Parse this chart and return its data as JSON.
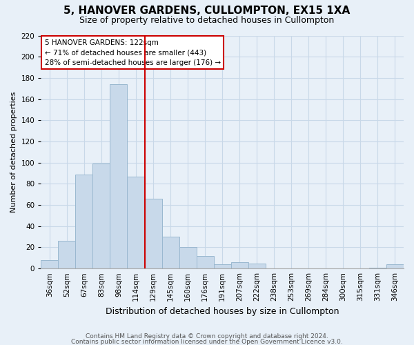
{
  "title": "5, HANOVER GARDENS, CULLOMPTON, EX15 1XA",
  "subtitle": "Size of property relative to detached houses in Cullompton",
  "xlabel": "Distribution of detached houses by size in Cullompton",
  "ylabel": "Number of detached properties",
  "bar_labels": [
    "36sqm",
    "52sqm",
    "67sqm",
    "83sqm",
    "98sqm",
    "114sqm",
    "129sqm",
    "145sqm",
    "160sqm",
    "176sqm",
    "191sqm",
    "207sqm",
    "222sqm",
    "238sqm",
    "253sqm",
    "269sqm",
    "284sqm",
    "300sqm",
    "315sqm",
    "331sqm",
    "346sqm"
  ],
  "bar_values": [
    8,
    26,
    89,
    99,
    174,
    87,
    66,
    30,
    20,
    12,
    4,
    6,
    5,
    0,
    0,
    0,
    0,
    0,
    0,
    1,
    4
  ],
  "bar_color": "#c8d9ea",
  "bar_edge_color": "#9ab8d0",
  "vline_index": 5.5,
  "vline_color": "#cc0000",
  "ylim": [
    0,
    220
  ],
  "yticks": [
    0,
    20,
    40,
    60,
    80,
    100,
    120,
    140,
    160,
    180,
    200,
    220
  ],
  "annotation_title": "5 HANOVER GARDENS: 122sqm",
  "annotation_line1": "← 71% of detached houses are smaller (443)",
  "annotation_line2": "28% of semi-detached houses are larger (176) →",
  "annotation_box_color": "#ffffff",
  "annotation_border_color": "#cc0000",
  "footer_line1": "Contains HM Land Registry data © Crown copyright and database right 2024.",
  "footer_line2": "Contains public sector information licensed under the Open Government Licence v3.0.",
  "grid_color": "#c8d8e8",
  "bg_color": "#e8f0f8",
  "title_fontsize": 11,
  "subtitle_fontsize": 9,
  "xlabel_fontsize": 9,
  "ylabel_fontsize": 8,
  "tick_fontsize": 7.5,
  "footer_fontsize": 6.5
}
